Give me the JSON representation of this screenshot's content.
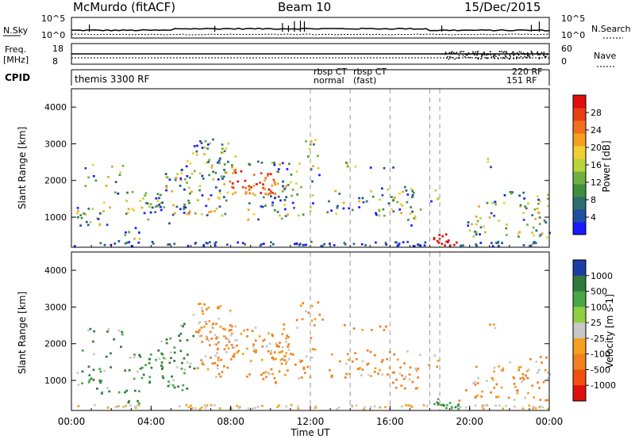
{
  "header": {
    "station": "McMurdo (fitACF)",
    "beam": "Beam 10",
    "date": "15/Dec/2015"
  },
  "top_strips": {
    "nsky_label": "N.Sky",
    "nsky_ticks": [
      "10^5",
      "10^0"
    ],
    "nsearch_label": "N.Search",
    "nsearch_ticks": [
      "10^5",
      "10^0"
    ],
    "freq_label_1": "Freq.",
    "freq_label_2": "[MHz]",
    "freq_ticks": [
      "18",
      "8"
    ],
    "nave_label": "Nave",
    "nave_ticks": [
      "60",
      "0"
    ],
    "cpid_label": "CPID",
    "cpid_segments": [
      {
        "text": "themis 3300 RF",
        "at": "00:00"
      },
      {
        "text": "rbsp CT",
        "at": "12:00"
      },
      {
        "text": "normal",
        "at": "12:00"
      },
      {
        "text": "rbsp CT",
        "at": "14:00"
      },
      {
        "text": "(fast)",
        "at": "14:00"
      },
      {
        "text": "220 RF",
        "at": "20:30"
      },
      {
        "text": "151 RF",
        "at": "21:30"
      }
    ]
  },
  "chart_data": [
    {
      "type": "heatmap",
      "name": "power-panel",
      "xlabel": "",
      "ylabel": "Slant Range [km]",
      "x_range_hours": [
        0,
        24
      ],
      "ylim": [
        180,
        4500
      ],
      "y_ticks": [
        1000,
        2000,
        3000,
        4000
      ],
      "colorbar": {
        "label": "Power [dB]",
        "ticks": [
          4,
          8,
          12,
          16,
          20,
          24,
          28
        ],
        "colors": [
          "#1a1aff",
          "#1f4fa0",
          "#2f6e6e",
          "#3f8f3f",
          "#6fb040",
          "#b8d43a",
          "#f0d030",
          "#f5a020",
          "#f07020",
          "#e84010",
          "#e01010"
        ]
      },
      "mode_change_times": [
        "12:00",
        "14:00",
        "16:00",
        "18:00",
        "18:30"
      ]
    },
    {
      "type": "heatmap",
      "name": "velocity-panel",
      "xlabel": "Time UT",
      "ylabel": "Slant Range [km]",
      "x_range_hours": [
        0,
        24
      ],
      "ylim": [
        180,
        4500
      ],
      "y_ticks": [
        1000,
        2000,
        3000,
        4000
      ],
      "x_ticks": [
        "00:00",
        "04:00",
        "08:00",
        "12:00",
        "16:00",
        "20:00",
        "00:00"
      ],
      "colorbar": {
        "label": "Velocity [m s-1]",
        "ticks": [
          1000,
          500,
          100,
          25,
          -25,
          -100,
          -500,
          -1000
        ],
        "colors": [
          "#1e3ca8",
          "#2f7a3a",
          "#48a848",
          "#8fd040",
          "#c8c8c8",
          "#f5a020",
          "#f08020",
          "#f05010",
          "#e01010"
        ]
      },
      "mode_change_times": [
        "12:00",
        "14:00",
        "16:00",
        "18:00",
        "18:30"
      ]
    }
  ]
}
